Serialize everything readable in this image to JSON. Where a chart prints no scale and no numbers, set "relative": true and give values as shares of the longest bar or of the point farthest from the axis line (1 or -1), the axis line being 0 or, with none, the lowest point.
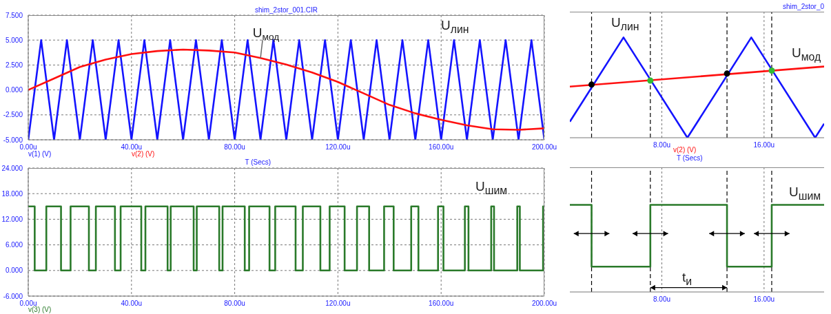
{
  "chart_data": [
    {
      "type": "line",
      "title": "shim_2stor_001.CIR",
      "xlabel": "T (Secs)",
      "xlim": [
        0,
        200
      ],
      "xticks": [
        {
          "value": 0,
          "label": "0.00u"
        },
        {
          "value": 40,
          "label": "40.00u"
        },
        {
          "value": 80,
          "label": "80.00u"
        },
        {
          "value": 120,
          "label": "120.00u"
        },
        {
          "value": 160,
          "label": "160.00u"
        },
        {
          "value": 200,
          "label": "200.00u"
        }
      ],
      "ylim": [
        -5,
        7.5
      ],
      "yticks": [
        {
          "value": -5,
          "label": "-5.000"
        },
        {
          "value": -2.5,
          "label": "-2.500"
        },
        {
          "value": 0,
          "label": "0.000"
        },
        {
          "value": 2.5,
          "label": "2.500"
        },
        {
          "value": 5,
          "label": "5.000"
        },
        {
          "value": 7.5,
          "label": "7.500"
        }
      ],
      "grid": true,
      "series": [
        {
          "name": "v(1) (V)",
          "color": "#1414ff",
          "x": [
            0,
            5,
            10,
            15,
            20,
            25,
            30,
            35,
            40,
            45,
            50,
            55,
            60,
            65,
            70,
            75,
            80,
            85,
            90,
            95,
            100,
            105,
            110,
            115,
            120,
            125,
            130,
            135,
            140,
            145,
            150,
            155,
            160,
            165,
            170,
            175,
            180,
            185,
            190,
            195,
            200
          ],
          "values": [
            -5,
            5,
            -5,
            5,
            -5,
            5,
            -5,
            5,
            -5,
            5,
            -5,
            5,
            -5,
            5,
            -5,
            5,
            -5,
            5,
            -5,
            5,
            -5,
            5,
            -5,
            5,
            -5,
            5,
            -5,
            5,
            -5,
            5,
            -5,
            5,
            -5,
            5,
            -5,
            5,
            -5,
            5,
            -5,
            5,
            -5
          ]
        },
        {
          "name": "v(2) (V)",
          "color": "#ff1010",
          "x": [
            0,
            10,
            20,
            30,
            40,
            50,
            60,
            70,
            80,
            90,
            100,
            110,
            120,
            130,
            140,
            150,
            160,
            170,
            180,
            190,
            200
          ],
          "values": [
            0,
            1.15,
            2.3,
            3.05,
            3.6,
            3.9,
            4.05,
            3.95,
            3.75,
            3.2,
            2.55,
            1.75,
            0.8,
            -0.35,
            -1.5,
            -2.35,
            -3.0,
            -3.55,
            -3.95,
            -4.0,
            -3.85
          ]
        }
      ],
      "annotations": [
        {
          "text": "U$_{мод}$",
          "x": 90,
          "y": 3.2
        },
        "U$_{лин}$"
      ]
    },
    {
      "type": "step",
      "xlim": [
        0,
        200
      ],
      "xticks": [
        {
          "value": 0,
          "label": "0.00u"
        },
        {
          "value": 40,
          "label": "40.00u"
        },
        {
          "value": 80,
          "label": "80.00u"
        },
        {
          "value": 120,
          "label": "120.00u"
        },
        {
          "value": 160,
          "label": "160.00u"
        },
        {
          "value": 200,
          "label": "200.00u"
        }
      ],
      "ylim": [
        -6,
        24
      ],
      "yticks": [
        {
          "value": -6,
          "label": "-6.000"
        },
        {
          "value": 0,
          "label": "0.000"
        },
        {
          "value": 6,
          "label": "6.000"
        },
        {
          "value": 12,
          "label": "12.000"
        },
        {
          "value": 18,
          "label": "18.000"
        },
        {
          "value": 24,
          "label": "24.000"
        }
      ],
      "grid": true,
      "series": [
        {
          "name": "v(3) (V)",
          "color": "#2a7a2a",
          "x": [
            0,
            2.5,
            7.0,
            12.7,
            16.4,
            23.5,
            26.2,
            33.6,
            35.8,
            43.8,
            45.4,
            54.0,
            55.2,
            64.1,
            65.3,
            74.0,
            75.3,
            83.9,
            85.6,
            93.5,
            95.7,
            103.6,
            106.4,
            113.2,
            116.8,
            122.6,
            127.4,
            132.1,
            137.9,
            141.6,
            148.4,
            151.2,
            158.8,
            160.9,
            169.2,
            170.6,
            179.4,
            180.5,
            189.5,
            190.5,
            199.5,
            200
          ],
          "values": [
            15,
            0,
            15,
            0,
            15,
            0,
            15,
            0,
            15,
            0,
            15,
            0,
            15,
            0,
            15,
            0,
            15,
            0,
            15,
            0,
            15,
            0,
            15,
            0,
            15,
            0,
            15,
            0,
            15,
            0,
            15,
            0,
            15,
            0,
            15,
            0,
            15,
            0,
            15,
            0,
            15,
            15
          ]
        }
      ],
      "annotations": [
        "U$_{шим}$"
      ]
    },
    {
      "type": "line",
      "title": "shim_2stor_0",
      "xlabel": "T (Secs)",
      "relative": true,
      "xlim": [
        0.8,
        20.7
      ],
      "xticks": [
        {
          "value": 8,
          "label": "8.00u"
        },
        {
          "value": 16,
          "label": "16.00u"
        }
      ],
      "tick_labels": "x",
      "grid": true,
      "series": [
        {
          "color": "#1414ff",
          "x": [
            0.8,
            5,
            10,
            15,
            20,
            20.7
          ],
          "values": [
            0.16,
            1,
            0,
            1,
            0,
            0.14
          ]
        },
        {
          "name": "v(2) (V)",
          "color": "#ff1010",
          "x": [
            0.8,
            20.7
          ],
          "values": [
            0.51,
            0.71
          ]
        },
        {
          "type": "scatter",
          "color": "#000000",
          "marker": "circle",
          "x": [
            2.5,
            13.1
          ],
          "values": [
            0.53,
            0.64
          ]
        },
        {
          "type": "scatter",
          "color": "#33bb33",
          "marker": "circle",
          "x": [
            7.1,
            16.6
          ],
          "values": [
            0.57,
            0.67
          ]
        }
      ],
      "ref_lines": [
        {
          "axis": "x",
          "value": 2.5,
          "color": "#000000",
          "line_style": "dashed"
        },
        {
          "axis": "x",
          "value": 7.1,
          "color": "#000000",
          "line_style": "dashed"
        },
        {
          "axis": "x",
          "value": 13.1,
          "color": "#000000",
          "line_style": "dashed"
        },
        {
          "axis": "x",
          "value": 16.6,
          "color": "#000000",
          "line_style": "dashed"
        }
      ],
      "annotations": [
        "U$_{лин}$",
        "U$_{мод}$"
      ]
    },
    {
      "type": "step",
      "relative": true,
      "xlim": [
        0.8,
        20.7
      ],
      "xticks": [
        {
          "value": 8,
          "label": "8.00u"
        },
        {
          "value": 16,
          "label": "16.00u"
        }
      ],
      "tick_labels": "x",
      "grid": true,
      "series": [
        {
          "color": "#2a7a2a",
          "x": [
            0.8,
            2.5,
            7.1,
            13.1,
            16.6,
            20.7
          ],
          "values": [
            1,
            0.29,
            1,
            0.29,
            1,
            1
          ]
        }
      ],
      "ref_lines": [
        {
          "axis": "x",
          "value": 2.5,
          "color": "#000000",
          "line_style": "dashed"
        },
        {
          "axis": "x",
          "value": 7.1,
          "color": "#000000",
          "line_style": "dashed"
        },
        {
          "axis": "x",
          "value": 13.1,
          "color": "#000000",
          "line_style": "dashed"
        },
        {
          "axis": "x",
          "value": 16.6,
          "color": "#000000",
          "line_style": "dashed"
        }
      ],
      "annotations": [
        "U$_{шим}$",
        "t$_{и}$"
      ]
    }
  ]
}
